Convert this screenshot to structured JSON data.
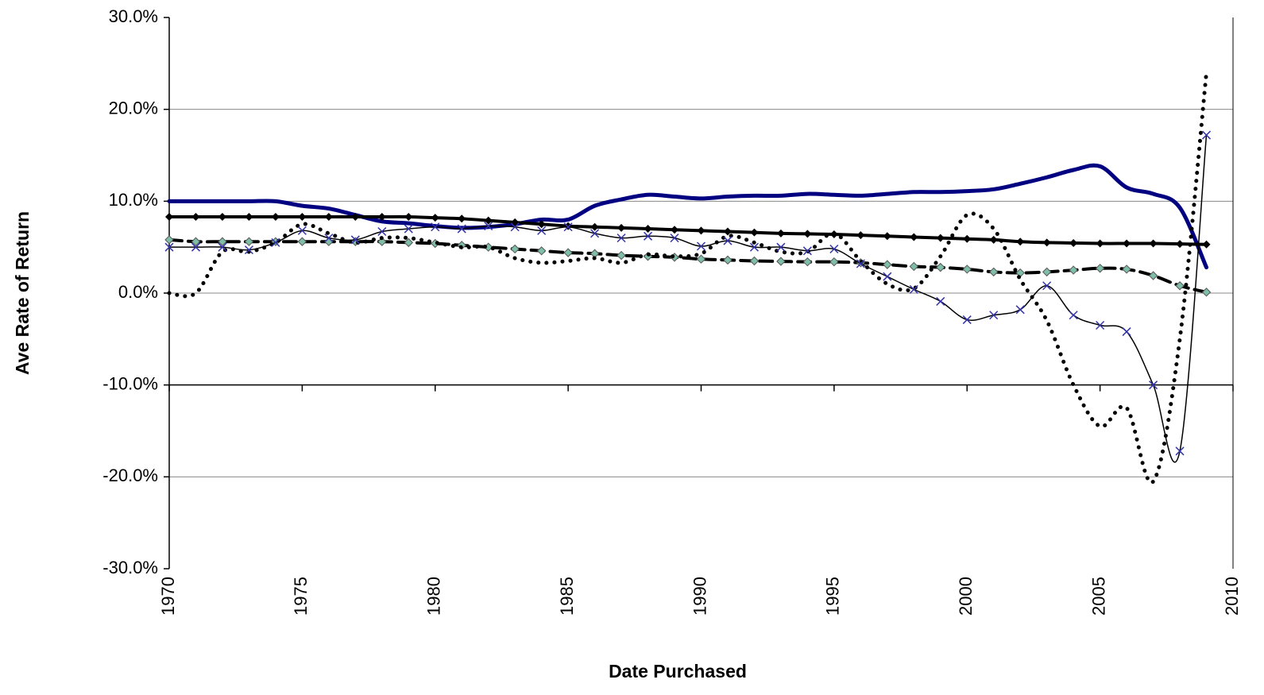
{
  "chart_data": {
    "type": "line",
    "x_label": "Date Purchased",
    "y_label": "Ave Rate of Return",
    "x": [
      1970,
      1971,
      1972,
      1973,
      1974,
      1975,
      1976,
      1977,
      1978,
      1979,
      1980,
      1981,
      1982,
      1983,
      1984,
      1985,
      1986,
      1987,
      1988,
      1989,
      1990,
      1991,
      1992,
      1993,
      1994,
      1995,
      1996,
      1997,
      1998,
      1999,
      2000,
      2001,
      2002,
      2003,
      2004,
      2005,
      2006,
      2007,
      2008,
      2009
    ],
    "xlim": [
      1970,
      2010
    ],
    "xticks": [
      1970,
      1975,
      1980,
      1985,
      1990,
      1995,
      2000,
      2005,
      2010
    ],
    "ylim": [
      -30,
      30
    ],
    "yticks": [
      {
        "value": -30,
        "label": "-30.0%"
      },
      {
        "value": -20,
        "label": "-20.0%"
      },
      {
        "value": -10,
        "label": "-10.0%"
      },
      {
        "value": 0,
        "label": "0.0%"
      },
      {
        "value": 10,
        "label": "10.0%"
      },
      {
        "value": 20,
        "label": "20.0%"
      },
      {
        "value": 30,
        "label": "30.0%"
      }
    ],
    "grid": true,
    "x_axis_at": -10,
    "smooth": true,
    "series": [
      {
        "color": "#000080",
        "line_style": "solid",
        "line_width": 5,
        "marker": null,
        "values": [
          10,
          10,
          10,
          10,
          10,
          9.5,
          9.2,
          8.5,
          7.8,
          7.6,
          7.3,
          7.1,
          7.2,
          7.5,
          8,
          8,
          9.5,
          10.2,
          10.7,
          10.5,
          10.3,
          10.5,
          10.6,
          10.6,
          10.8,
          10.7,
          10.6,
          10.8,
          11,
          11,
          11.1,
          11.3,
          11.9,
          12.6,
          13.4,
          13.8,
          11.5,
          10.8,
          9.3,
          2.8
        ]
      },
      {
        "color": "#000000",
        "line_style": "solid",
        "line_width": 4,
        "marker": "diamond",
        "marker_color": "#000000",
        "values": [
          8.3,
          8.3,
          8.3,
          8.3,
          8.3,
          8.3,
          8.3,
          8.3,
          8.3,
          8.3,
          8.2,
          8.1,
          7.9,
          7.7,
          7.5,
          7.3,
          7.2,
          7.1,
          7,
          6.9,
          6.8,
          6.7,
          6.6,
          6.5,
          6.45,
          6.4,
          6.3,
          6.2,
          6.1,
          6,
          5.9,
          5.8,
          5.6,
          5.5,
          5.45,
          5.4,
          5.4,
          5.4,
          5.35,
          5.3
        ]
      },
      {
        "color": "#000000",
        "line_style": "dashed",
        "line_width": 4,
        "marker": "diamond",
        "marker_color": "#7fbfa8",
        "values": [
          5.8,
          5.6,
          5.6,
          5.6,
          5.6,
          5.6,
          5.6,
          5.6,
          5.6,
          5.5,
          5.4,
          5.2,
          5,
          4.8,
          4.6,
          4.4,
          4.3,
          4.1,
          4,
          3.9,
          3.7,
          3.6,
          3.5,
          3.45,
          3.4,
          3.4,
          3.3,
          3.1,
          2.9,
          2.8,
          2.6,
          2.3,
          2.2,
          2.3,
          2.5,
          2.7,
          2.6,
          1.9,
          0.8,
          0.1
        ]
      },
      {
        "color": "#000000",
        "line_style": "dotted",
        "line_width": 5,
        "marker": null,
        "values": [
          0,
          0,
          4.5,
          4.5,
          5.5,
          7.5,
          6.5,
          5.5,
          6,
          6,
          5.5,
          5,
          5,
          3.8,
          3.3,
          3.5,
          3.8,
          3.3,
          4.2,
          4,
          4.3,
          6.2,
          5.5,
          4.5,
          4.5,
          6.5,
          3.5,
          1,
          0.5,
          4,
          8.5,
          7,
          1.5,
          -3,
          -10,
          -14.5,
          -12.5,
          -20.5,
          -5,
          24
        ]
      },
      {
        "color": "#000000",
        "line_style": "solid",
        "line_width": 1.5,
        "marker": "x",
        "marker_color": "#3333aa",
        "values": [
          5,
          5,
          5,
          4.7,
          5.5,
          6.8,
          6,
          5.8,
          6.7,
          7,
          7.2,
          7,
          7.3,
          7.2,
          6.8,
          7.2,
          6.5,
          6,
          6.2,
          6,
          5.1,
          5.7,
          5,
          5,
          4.6,
          4.8,
          3.2,
          1.8,
          0.4,
          -0.9,
          -2.9,
          -2.4,
          -1.8,
          0.8,
          -2.4,
          -3.5,
          -4.2,
          -10,
          -17.2,
          17.2
        ]
      }
    ]
  }
}
